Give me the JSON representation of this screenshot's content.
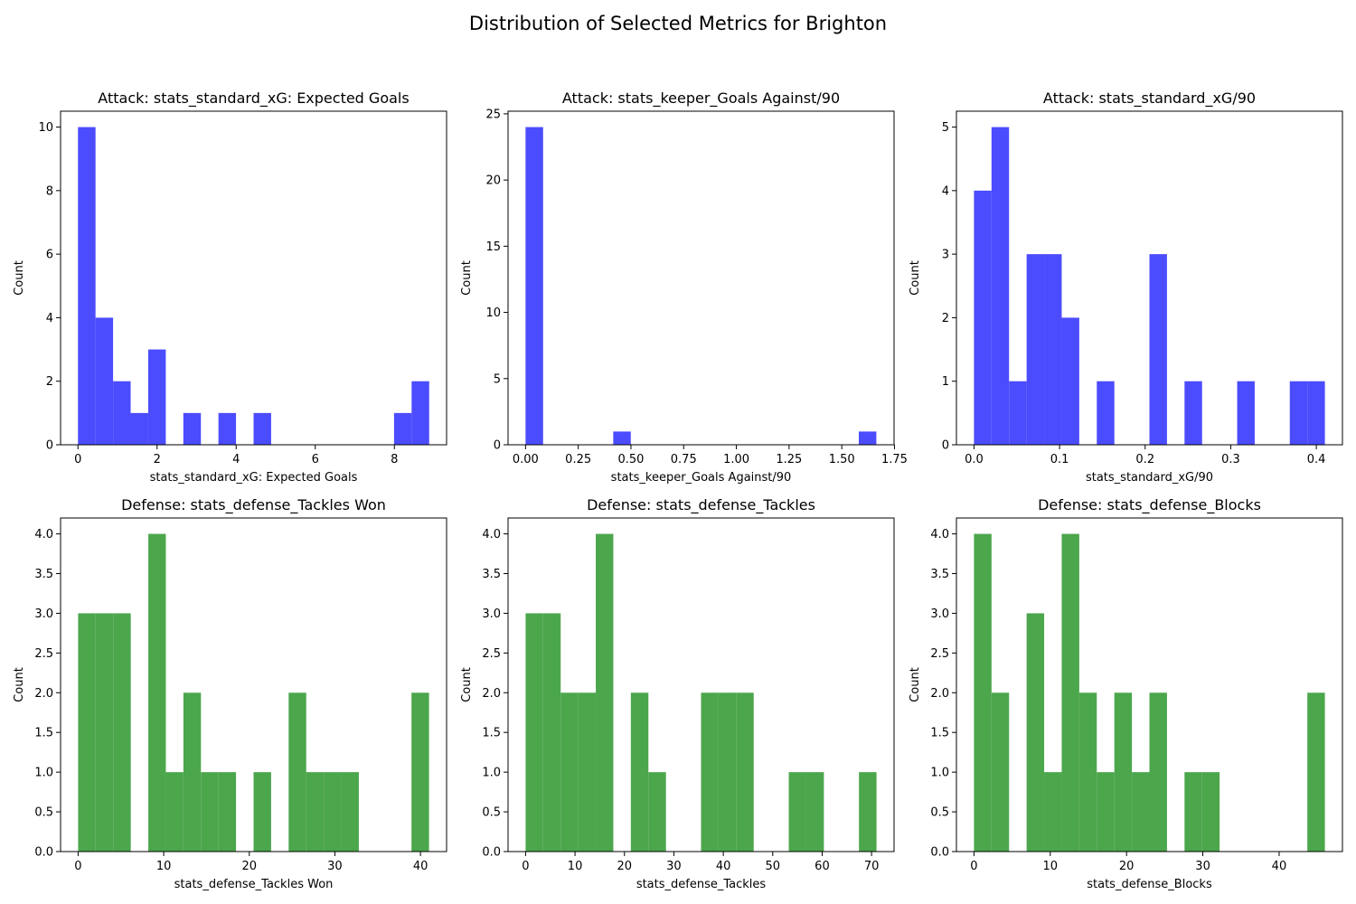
{
  "figure": {
    "title": "Distribution of Selected Metrics for Brighton"
  },
  "colors": {
    "attack": "#4c4cff",
    "defense": "#4ca64c",
    "axis": "#000000"
  },
  "chart_data": [
    {
      "type": "bar",
      "title": "Attack: stats_standard_xG: Expected Goals",
      "xlabel": "stats_standard_xG: Expected Goals",
      "ylabel": "Count",
      "color": "#4c4cff",
      "xlim": [
        -0.44,
        9.32
      ],
      "ylim": [
        0,
        10.5
      ],
      "xticks": [
        0,
        2,
        4,
        6,
        8
      ],
      "xticklabels": [
        "0",
        "2",
        "4",
        "6",
        "8"
      ],
      "yticks": [
        0,
        2,
        4,
        6,
        8,
        10
      ],
      "yticklabels": [
        "0",
        "2",
        "4",
        "6",
        "8",
        "10"
      ],
      "bin_start": 0.0,
      "bin_width": 0.444,
      "counts": [
        10,
        4,
        2,
        1,
        3,
        0,
        1,
        0,
        1,
        0,
        1,
        0,
        0,
        0,
        0,
        0,
        0,
        0,
        1,
        2
      ]
    },
    {
      "type": "bar",
      "title": "Attack: stats_keeper_Goals Against/90",
      "xlabel": "stats_keeper_Goals Against/90",
      "ylabel": "Count",
      "color": "#4c4cff",
      "xlim": [
        -0.083,
        1.748
      ],
      "ylim": [
        0,
        25.2
      ],
      "xticks": [
        0,
        0.25,
        0.5,
        0.75,
        1.0,
        1.25,
        1.5,
        1.75
      ],
      "xticklabels": [
        "0.00",
        "0.25",
        "0.50",
        "0.75",
        "1.00",
        "1.25",
        "1.50",
        "1.75"
      ],
      "yticks": [
        0,
        5,
        10,
        15,
        20,
        25
      ],
      "yticklabels": [
        "0",
        "5",
        "10",
        "15",
        "20",
        "25"
      ],
      "bin_start": 0.0,
      "bin_width": 0.0832,
      "counts": [
        24,
        0,
        0,
        0,
        0,
        1,
        0,
        0,
        0,
        0,
        0,
        0,
        0,
        0,
        0,
        0,
        0,
        0,
        0,
        1
      ]
    },
    {
      "type": "bar",
      "title": "Attack: stats_standard_xG/90",
      "xlabel": "stats_standard_xG/90",
      "ylabel": "Count",
      "color": "#4c4cff",
      "xlim": [
        -0.0205,
        0.4305
      ],
      "ylim": [
        0,
        5.25
      ],
      "xticks": [
        0,
        0.1,
        0.2,
        0.3,
        0.4
      ],
      "xticklabels": [
        "0.0",
        "0.1",
        "0.2",
        "0.3",
        "0.4"
      ],
      "yticks": [
        0,
        1,
        2,
        3,
        4,
        5
      ],
      "yticklabels": [
        "0",
        "1",
        "2",
        "3",
        "4",
        "5"
      ],
      "bin_start": 0.0,
      "bin_width": 0.0205,
      "counts": [
        4,
        5,
        1,
        3,
        3,
        2,
        0,
        1,
        0,
        0,
        3,
        0,
        1,
        0,
        0,
        1,
        0,
        0,
        1,
        1
      ]
    },
    {
      "type": "bar",
      "title": "Defense: stats_defense_Tackles Won",
      "xlabel": "stats_defense_Tackles Won",
      "ylabel": "Count",
      "color": "#4ca64c",
      "xlim": [
        -2.05,
        43.05
      ],
      "ylim": [
        0,
        4.2
      ],
      "xticks": [
        0,
        10,
        20,
        30,
        40
      ],
      "xticklabels": [
        "0",
        "10",
        "20",
        "30",
        "40"
      ],
      "yticks": [
        0,
        0.5,
        1.0,
        1.5,
        2.0,
        2.5,
        3.0,
        3.5,
        4.0
      ],
      "yticklabels": [
        "0.0",
        "0.5",
        "1.0",
        "1.5",
        "2.0",
        "2.5",
        "3.0",
        "3.5",
        "4.0"
      ],
      "bin_start": 0.0,
      "bin_width": 2.05,
      "counts": [
        3,
        3,
        3,
        0,
        4,
        1,
        2,
        1,
        1,
        0,
        1,
        0,
        2,
        1,
        1,
        1,
        0,
        0,
        0,
        2
      ]
    },
    {
      "type": "bar",
      "title": "Defense: stats_defense_Tackles",
      "xlabel": "stats_defense_Tackles",
      "ylabel": "Count",
      "color": "#4ca64c",
      "xlim": [
        -3.55,
        74.55
      ],
      "ylim": [
        0,
        4.2
      ],
      "xticks": [
        0,
        10,
        20,
        30,
        40,
        50,
        60,
        70
      ],
      "xticklabels": [
        "0",
        "10",
        "20",
        "30",
        "40",
        "50",
        "60",
        "70"
      ],
      "yticks": [
        0,
        0.5,
        1.0,
        1.5,
        2.0,
        2.5,
        3.0,
        3.5,
        4.0
      ],
      "yticklabels": [
        "0.0",
        "0.5",
        "1.0",
        "1.5",
        "2.0",
        "2.5",
        "3.0",
        "3.5",
        "4.0"
      ],
      "bin_start": 0.0,
      "bin_width": 3.55,
      "counts": [
        3,
        3,
        2,
        2,
        4,
        0,
        2,
        1,
        0,
        0,
        2,
        2,
        2,
        0,
        0,
        1,
        1,
        0,
        0,
        1
      ]
    },
    {
      "type": "bar",
      "title": "Defense: stats_defense_Blocks",
      "xlabel": "stats_defense_Blocks",
      "ylabel": "Count",
      "color": "#4ca64c",
      "xlim": [
        -2.3,
        48.3
      ],
      "ylim": [
        0,
        4.2
      ],
      "xticks": [
        0,
        10,
        20,
        30,
        40
      ],
      "xticklabels": [
        "0",
        "10",
        "20",
        "30",
        "40"
      ],
      "yticks": [
        0,
        0.5,
        1.0,
        1.5,
        2.0,
        2.5,
        3.0,
        3.5,
        4.0
      ],
      "yticklabels": [
        "0.0",
        "0.5",
        "1.0",
        "1.5",
        "2.0",
        "2.5",
        "3.0",
        "3.5",
        "4.0"
      ],
      "bin_start": 0.0,
      "bin_width": 2.3,
      "counts": [
        4,
        2,
        0,
        3,
        1,
        4,
        2,
        1,
        2,
        1,
        2,
        0,
        1,
        1,
        0,
        0,
        0,
        0,
        0,
        2
      ]
    }
  ]
}
